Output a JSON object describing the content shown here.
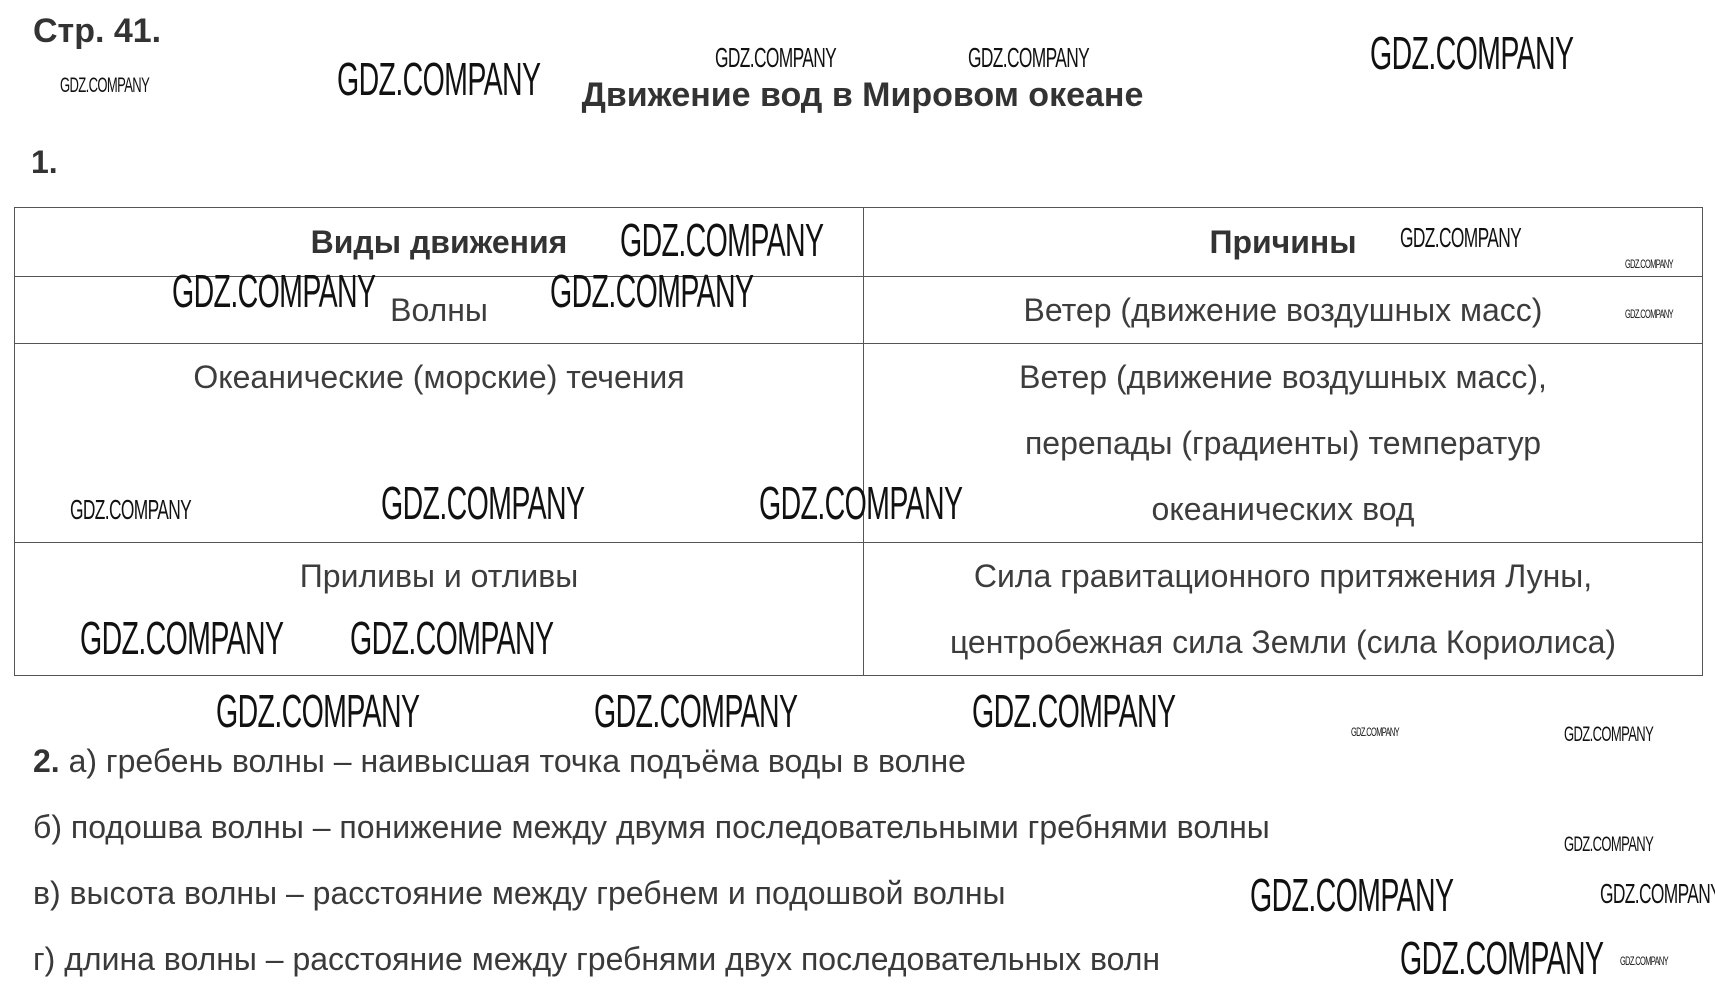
{
  "header": {
    "page_ref": "Стр. 41.",
    "title": "Движение вод в Мировом океане"
  },
  "task1": {
    "number": "1.",
    "table": {
      "headers": [
        "Виды движения",
        "Причины"
      ],
      "rows": [
        {
          "type": "Волны",
          "causes": [
            "Ветер (движение воздушных масс)"
          ]
        },
        {
          "type": "Океанические (морские) течения",
          "causes": [
            "Ветер (движение воздушных масс),",
            "перепады (градиенты) температур",
            "океанических вод"
          ]
        },
        {
          "type": "Приливы и отливы",
          "causes": [
            "Сила гравитационного притяжения Луны,",
            "центробежная сила Земли (сила Кориолиса)"
          ]
        }
      ]
    }
  },
  "task2": {
    "number": "2.",
    "lines": [
      "а) гребень волны – наивысшая точка подъёма воды в волне",
      "б) подошва волны – понижение между двумя последовательными гребнями волны",
      "в) высота волны – расстояние между гребнем и подошвой волны",
      "г) длина волны – расстояние между гребнями двух последовательных волн"
    ]
  },
  "watermark": "GDZ.COMPANY"
}
